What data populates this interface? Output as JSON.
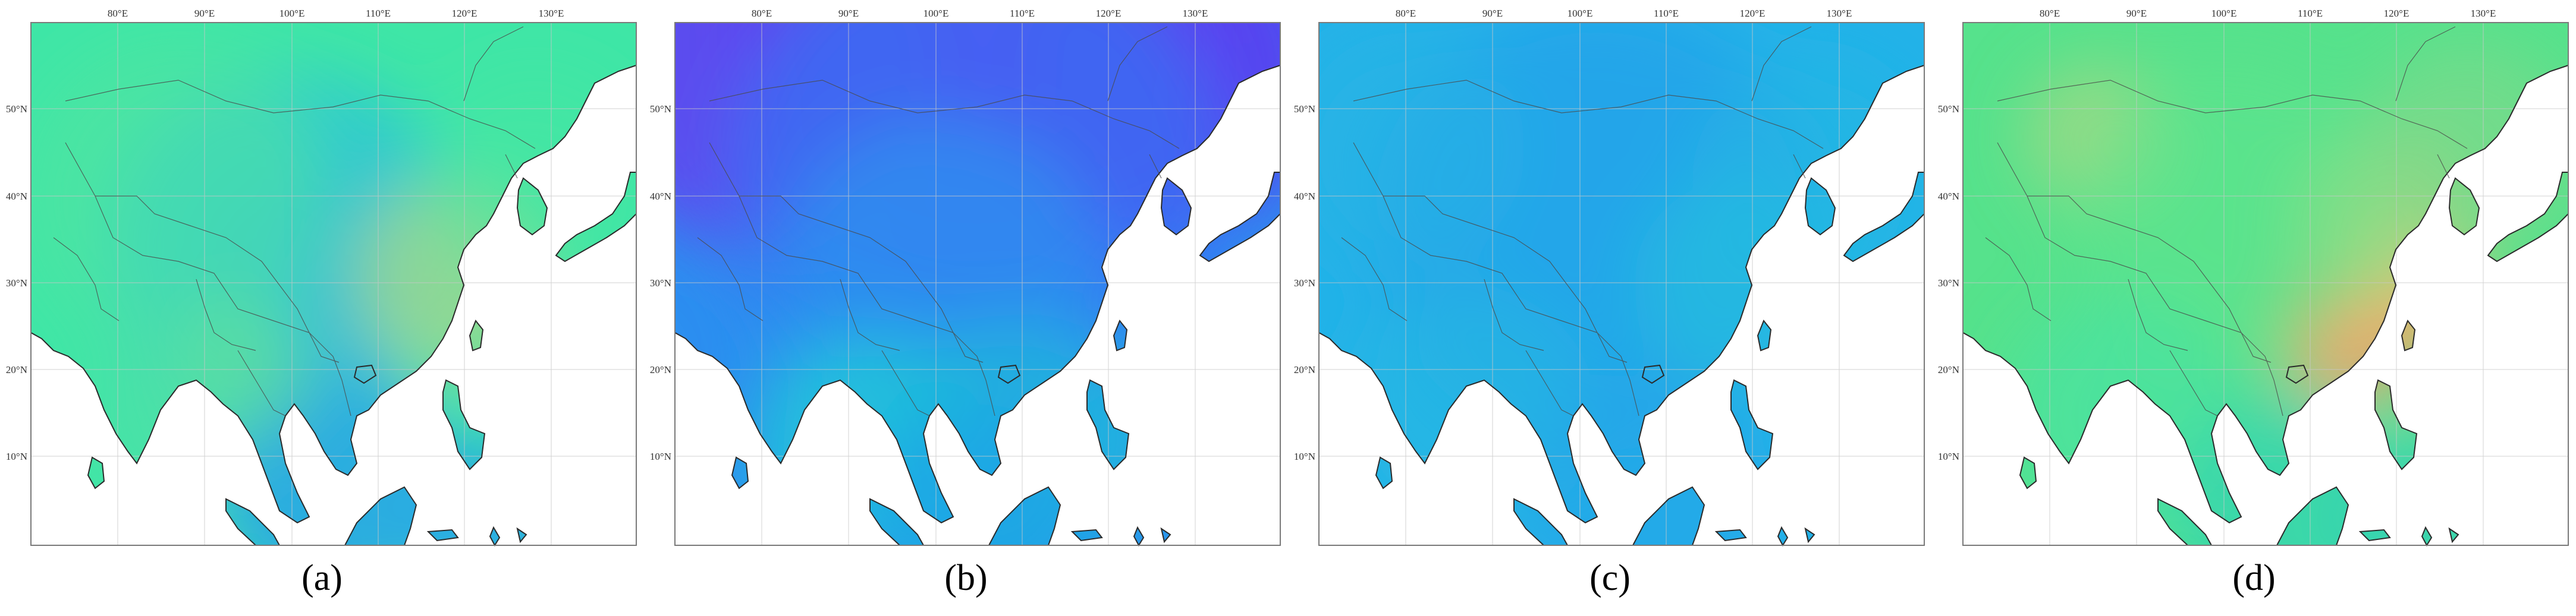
{
  "panels": [
    {
      "id": "a",
      "label": "(a)",
      "theme": "teal-green"
    },
    {
      "id": "b",
      "label": "(b)",
      "theme": "purple-blue"
    },
    {
      "id": "c",
      "label": "(c)",
      "theme": "sky-blue"
    },
    {
      "id": "d",
      "label": "(d)",
      "theme": "green-orange"
    }
  ],
  "axes": {
    "lon_labels": [
      "80°E",
      "90°E",
      "100°E",
      "110°E",
      "120°E",
      "130°E"
    ],
    "lat_labels": [
      "50°N",
      "40°N",
      "30°N",
      "20°N",
      "10°N"
    ]
  },
  "colors": {
    "ocean": "#ffffff",
    "border": "#2a2a2a",
    "grid": "#c8c8c8",
    "frame": "#7a7a7a"
  }
}
